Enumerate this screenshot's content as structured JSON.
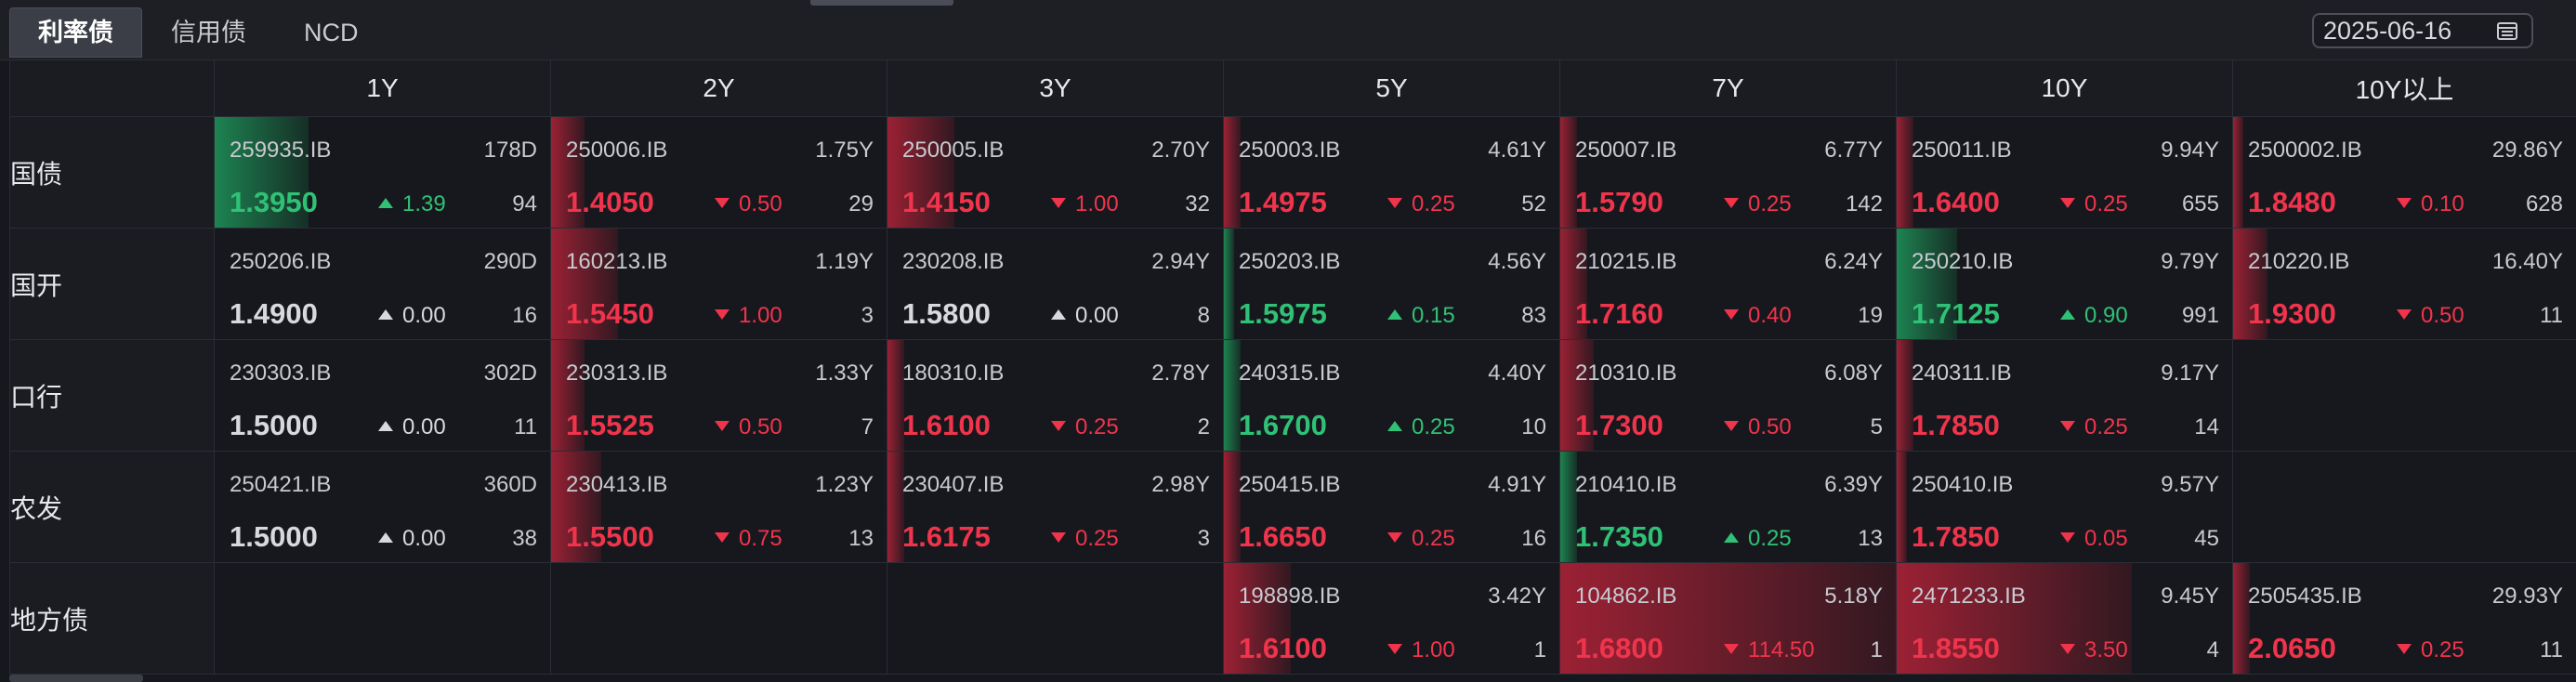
{
  "tabs": [
    "利率债",
    "信用债",
    "NCD"
  ],
  "active_tab": 0,
  "date": "2025-06-16",
  "columns": [
    "1Y",
    "2Y",
    "3Y",
    "5Y",
    "7Y",
    "10Y",
    "10Y以上"
  ],
  "rows": [
    {
      "label": "国债",
      "cells": [
        {
          "code": "259935.IB",
          "term": "178D",
          "price": "1.3950",
          "change": "1.39",
          "count": "94",
          "dir": "up",
          "bar": {
            "color": "green",
            "start": 0,
            "level": 0.28
          }
        },
        {
          "code": "250006.IB",
          "term": "1.75Y",
          "price": "1.4050",
          "change": "0.50",
          "count": "29",
          "dir": "down",
          "bar": {
            "color": "red",
            "start": 0,
            "level": 0.1
          }
        },
        {
          "code": "250005.IB",
          "term": "2.70Y",
          "price": "1.4150",
          "change": "1.00",
          "count": "32",
          "dir": "down",
          "bar": {
            "color": "red",
            "start": 0,
            "level": 0.2
          }
        },
        {
          "code": "250003.IB",
          "term": "4.61Y",
          "price": "1.4975",
          "change": "0.25",
          "count": "52",
          "dir": "down",
          "bar": {
            "color": "red",
            "start": 0,
            "level": 0.05
          }
        },
        {
          "code": "250007.IB",
          "term": "6.77Y",
          "price": "1.5790",
          "change": "0.25",
          "count": "142",
          "dir": "down",
          "bar": {
            "color": "red",
            "start": 0,
            "level": 0.05
          }
        },
        {
          "code": "250011.IB",
          "term": "9.94Y",
          "price": "1.6400",
          "change": "0.25",
          "count": "655",
          "dir": "down",
          "bar": {
            "color": "red",
            "start": 0,
            "level": 0.05
          }
        },
        {
          "code": "2500002.IB",
          "term": "29.86Y",
          "price": "1.8480",
          "change": "0.10",
          "count": "628",
          "dir": "down",
          "bar": {
            "color": "red",
            "start": 0,
            "level": 0.02
          }
        }
      ]
    },
    {
      "label": "国开",
      "cells": [
        {
          "code": "250206.IB",
          "term": "290D",
          "price": "1.4900",
          "change": "0.00",
          "count": "16",
          "dir": "flat",
          "bar": null
        },
        {
          "code": "160213.IB",
          "term": "1.19Y",
          "price": "1.5450",
          "change": "1.00",
          "count": "3",
          "dir": "down",
          "bar": {
            "color": "red",
            "start": 0,
            "level": 0.2
          }
        },
        {
          "code": "230208.IB",
          "term": "2.94Y",
          "price": "1.5800",
          "change": "0.00",
          "count": "8",
          "dir": "flat",
          "bar": null
        },
        {
          "code": "250203.IB",
          "term": "4.56Y",
          "price": "1.5975",
          "change": "0.15",
          "count": "83",
          "dir": "up",
          "bar": {
            "color": "green",
            "start": 0,
            "level": 0.03
          }
        },
        {
          "code": "210215.IB",
          "term": "6.24Y",
          "price": "1.7160",
          "change": "0.40",
          "count": "19",
          "dir": "down",
          "bar": {
            "color": "red",
            "start": 0,
            "level": 0.08
          }
        },
        {
          "code": "250210.IB",
          "term": "9.79Y",
          "price": "1.7125",
          "change": "0.90",
          "count": "991",
          "dir": "up",
          "bar": {
            "color": "green",
            "start": 0,
            "level": 0.18
          }
        },
        {
          "code": "210220.IB",
          "term": "16.40Y",
          "price": "1.9300",
          "change": "0.50",
          "count": "11",
          "dir": "down",
          "bar": {
            "color": "red",
            "start": 0,
            "level": 0.1
          }
        }
      ]
    },
    {
      "label": "口行",
      "cells": [
        {
          "code": "230303.IB",
          "term": "302D",
          "price": "1.5000",
          "change": "0.00",
          "count": "11",
          "dir": "flat",
          "bar": null
        },
        {
          "code": "230313.IB",
          "term": "1.33Y",
          "price": "1.5525",
          "change": "0.50",
          "count": "7",
          "dir": "down",
          "bar": {
            "color": "red",
            "start": 0,
            "level": 0.1
          }
        },
        {
          "code": "180310.IB",
          "term": "2.78Y",
          "price": "1.6100",
          "change": "0.25",
          "count": "2",
          "dir": "down",
          "bar": {
            "color": "red",
            "start": 0,
            "level": 0.05
          }
        },
        {
          "code": "240315.IB",
          "term": "4.40Y",
          "price": "1.6700",
          "change": "0.25",
          "count": "10",
          "dir": "up",
          "bar": {
            "color": "green",
            "start": 0,
            "level": 0.05
          }
        },
        {
          "code": "210310.IB",
          "term": "6.08Y",
          "price": "1.7300",
          "change": "0.50",
          "count": "5",
          "dir": "down",
          "bar": {
            "color": "red",
            "start": 0,
            "level": 0.1
          }
        },
        {
          "code": "240311.IB",
          "term": "9.17Y",
          "price": "1.7850",
          "change": "0.25",
          "count": "14",
          "dir": "down",
          "bar": {
            "color": "red",
            "start": 0,
            "level": 0.05
          }
        },
        null
      ]
    },
    {
      "label": "农发",
      "cells": [
        {
          "code": "250421.IB",
          "term": "360D",
          "price": "1.5000",
          "change": "0.00",
          "count": "38",
          "dir": "flat",
          "bar": null
        },
        {
          "code": "230413.IB",
          "term": "1.23Y",
          "price": "1.5500",
          "change": "0.75",
          "count": "13",
          "dir": "down",
          "bar": {
            "color": "red",
            "start": 0,
            "level": 0.15
          }
        },
        {
          "code": "230407.IB",
          "term": "2.98Y",
          "price": "1.6175",
          "change": "0.25",
          "count": "3",
          "dir": "down",
          "bar": {
            "color": "red",
            "start": 0,
            "level": 0.05
          }
        },
        {
          "code": "250415.IB",
          "term": "4.91Y",
          "price": "1.6650",
          "change": "0.25",
          "count": "16",
          "dir": "down",
          "bar": {
            "color": "red",
            "start": 0,
            "level": 0.05
          }
        },
        {
          "code": "210410.IB",
          "term": "6.39Y",
          "price": "1.7350",
          "change": "0.25",
          "count": "13",
          "dir": "up",
          "bar": {
            "color": "green",
            "start": 0,
            "level": 0.05
          }
        },
        {
          "code": "250410.IB",
          "term": "9.57Y",
          "price": "1.7850",
          "change": "0.05",
          "count": "45",
          "dir": "down",
          "bar": {
            "color": "red",
            "start": 0,
            "level": 0.01
          }
        },
        null
      ]
    },
    {
      "label": "地方债",
      "cells": [
        null,
        null,
        null,
        {
          "code": "198898.IB",
          "term": "3.42Y",
          "price": "1.6100",
          "change": "1.00",
          "count": "1",
          "dir": "down",
          "bar": {
            "color": "red",
            "start": 0,
            "level": 0.2
          }
        },
        {
          "code": "104862.IB",
          "term": "5.18Y",
          "price": "1.6800",
          "change": "114.50",
          "count": "1",
          "dir": "down",
          "bar": {
            "color": "red",
            "start": 0,
            "level": 1.0
          }
        },
        {
          "code": "2471233.IB",
          "term": "9.45Y",
          "price": "1.8550",
          "change": "3.50",
          "count": "4",
          "dir": "down",
          "bar": {
            "color": "red",
            "start": 0,
            "level": 0.7
          }
        },
        {
          "code": "2505435.IB",
          "term": "29.93Y",
          "price": "2.0650",
          "change": "0.25",
          "count": "11",
          "dir": "down",
          "bar": {
            "color": "red",
            "start": 0,
            "level": 0.05
          }
        }
      ]
    }
  ],
  "colors": {
    "up": "#2fc276",
    "down": "#f0344c",
    "flat": "#d7d9de",
    "background": "#17181d"
  }
}
